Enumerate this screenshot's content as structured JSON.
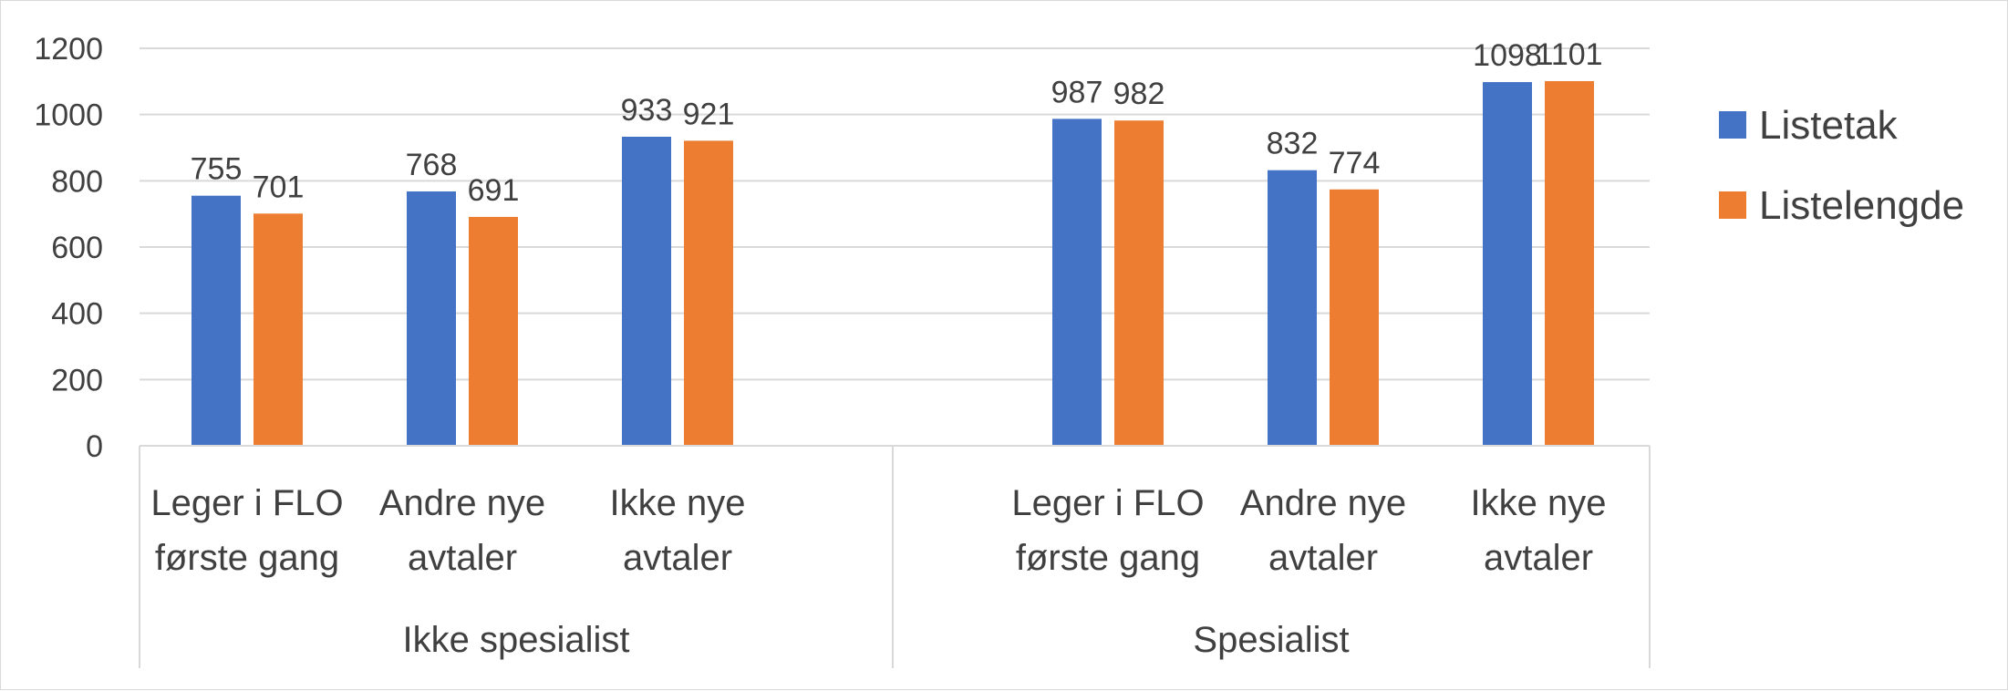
{
  "chart_data": {
    "type": "bar",
    "groups": [
      {
        "label": "Ikke spesialist",
        "categories": [
          [
            "Leger i FLO",
            "første gang"
          ],
          [
            "Andre nye",
            "avtaler"
          ],
          [
            "Ikke nye",
            "avtaler"
          ]
        ]
      },
      {
        "label": "Spesialist",
        "categories": [
          [
            "Leger i FLO",
            "første gang"
          ],
          [
            "Andre nye",
            "avtaler"
          ],
          [
            "Ikke nye",
            "avtaler"
          ]
        ]
      }
    ],
    "series": [
      {
        "name": "Listetak",
        "color": "#4472C4",
        "values": [
          755,
          768,
          933,
          987,
          832,
          1098
        ]
      },
      {
        "name": "Listelengde",
        "color": "#ED7D31",
        "values": [
          701,
          691,
          921,
          982,
          774,
          1101
        ]
      }
    ],
    "ylim": [
      0,
      1200
    ],
    "yticks": [
      0,
      200,
      400,
      600,
      800,
      1000,
      1200
    ],
    "grid": true,
    "legend_position": "right",
    "data_labels": true
  }
}
